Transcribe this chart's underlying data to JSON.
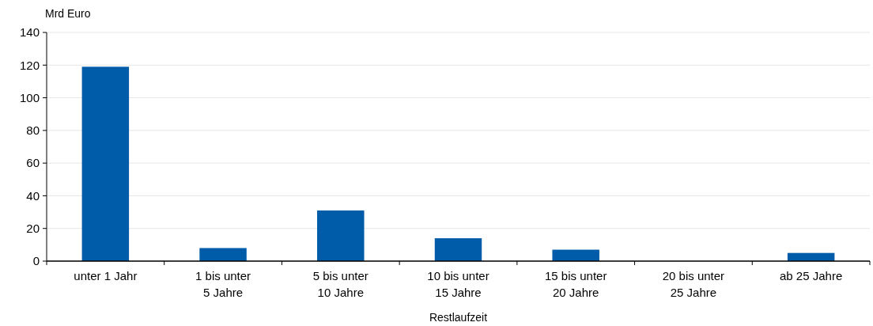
{
  "chart_data": {
    "type": "bar",
    "ylabel": "Mrd Euro",
    "xlabel": "Restlaufzeit",
    "categories": [
      "unter 1 Jahr",
      "1 bis unter\n5 Jahre",
      "5 bis unter\n10 Jahre",
      "10 bis unter\n15 Jahre",
      "15 bis unter\n20 Jahre",
      "20 bis unter\n25 Jahre",
      "ab 25 Jahre"
    ],
    "values": [
      119,
      8,
      31,
      14,
      7,
      0,
      5
    ],
    "color": "#005ca9",
    "ylim": [
      0,
      140
    ],
    "yticks": [
      0,
      20,
      40,
      60,
      80,
      100,
      120,
      140
    ],
    "grid": "y"
  }
}
